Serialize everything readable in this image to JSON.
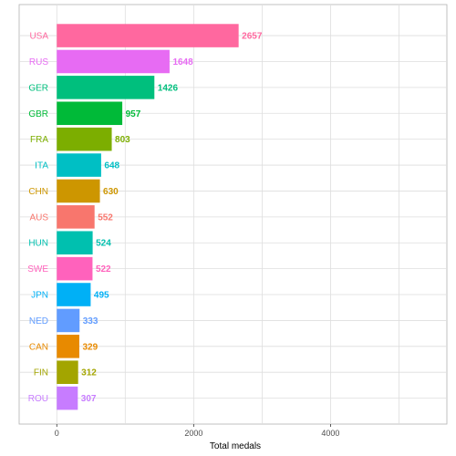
{
  "chart_data": {
    "type": "bar",
    "orientation": "horizontal",
    "title": "",
    "xlabel": "Total medals",
    "ylabel": "",
    "xlim": [
      -550,
      5700
    ],
    "x_ticks": [
      0,
      2000,
      4000
    ],
    "x_tick_labels": [
      "0",
      "2000",
      "4000"
    ],
    "grid": true,
    "legend": "none",
    "categories": [
      "USA",
      "RUS",
      "GER",
      "GBR",
      "FRA",
      "ITA",
      "CHN",
      "AUS",
      "HUN",
      "SWE",
      "JPN",
      "NED",
      "CAN",
      "FIN",
      "ROU"
    ],
    "values": [
      2657,
      1648,
      1426,
      957,
      803,
      648,
      630,
      552,
      524,
      522,
      495,
      333,
      329,
      312,
      307
    ],
    "value_labels": [
      "2657",
      "1648",
      "1426",
      "957",
      "803",
      "648",
      "630",
      "552",
      "524",
      "522",
      "495",
      "333",
      "329",
      "312",
      "307"
    ],
    "colors": [
      "#FF689F",
      "#E76BF3",
      "#00BF7D",
      "#00BA38",
      "#7CAE00",
      "#00BFC4",
      "#CD9600",
      "#F8766D",
      "#00C0AF",
      "#FF62BC",
      "#00B0F6",
      "#619CFF",
      "#E88A00",
      "#A3A500",
      "#C77CFF"
    ]
  }
}
